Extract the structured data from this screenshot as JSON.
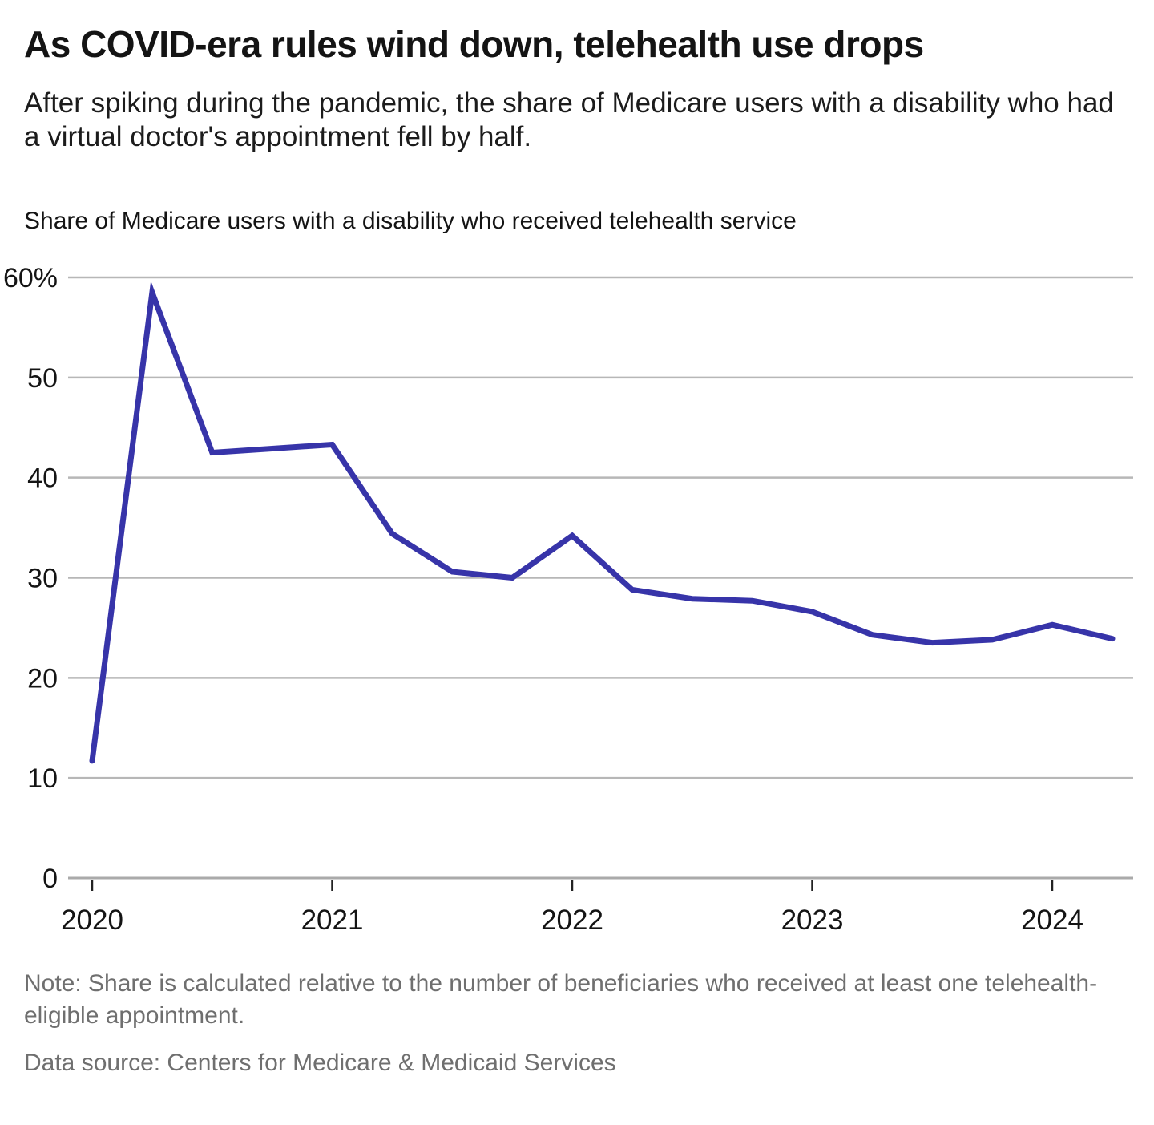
{
  "header": {
    "title": "As COVID-era rules wind down, telehealth use drops",
    "subtitle": "After spiking during the pandemic, the share of Medicare users with a disability who had a virtual doctor's appointment fell by half."
  },
  "chart_label": "Share of Medicare users with a disability who received telehealth service",
  "notes": {
    "note": "Note: Share is calculated relative to the number of beneficiaries who received at least one telehealth-eligible appointment.",
    "source": "Data source: Centers for Medicare & Medicaid Services"
  },
  "chart_data": {
    "type": "line",
    "title": "Share of Medicare users with a disability who received telehealth service",
    "x": [
      "2020 Q1",
      "2020 Q2",
      "2020 Q3",
      "2020 Q4",
      "2021 Q1",
      "2021 Q2",
      "2021 Q3",
      "2021 Q4",
      "2022 Q1",
      "2022 Q2",
      "2022 Q3",
      "2022 Q4",
      "2023 Q1",
      "2023 Q2",
      "2023 Q3",
      "2023 Q4",
      "2024 Q1",
      "2024 Q2"
    ],
    "values": [
      11.7,
      58.5,
      42.5,
      42.9,
      43.3,
      34.4,
      30.6,
      30.0,
      34.2,
      28.8,
      27.9,
      27.7,
      26.6,
      24.3,
      23.5,
      23.8,
      25.3,
      23.9
    ],
    "xlabel": "",
    "ylabel": "",
    "ylim": [
      0,
      60
    ],
    "y_ticks": [
      0,
      10,
      20,
      30,
      40,
      50,
      60
    ],
    "y_tick_suffix": "%",
    "x_year_ticks": [
      "2020",
      "2021",
      "2022",
      "2023",
      "2024"
    ],
    "grid": "horizontal",
    "legend": "none",
    "line_color": "#3734a9",
    "grid_color": "#b7b7b7",
    "label_color": "#141414"
  }
}
